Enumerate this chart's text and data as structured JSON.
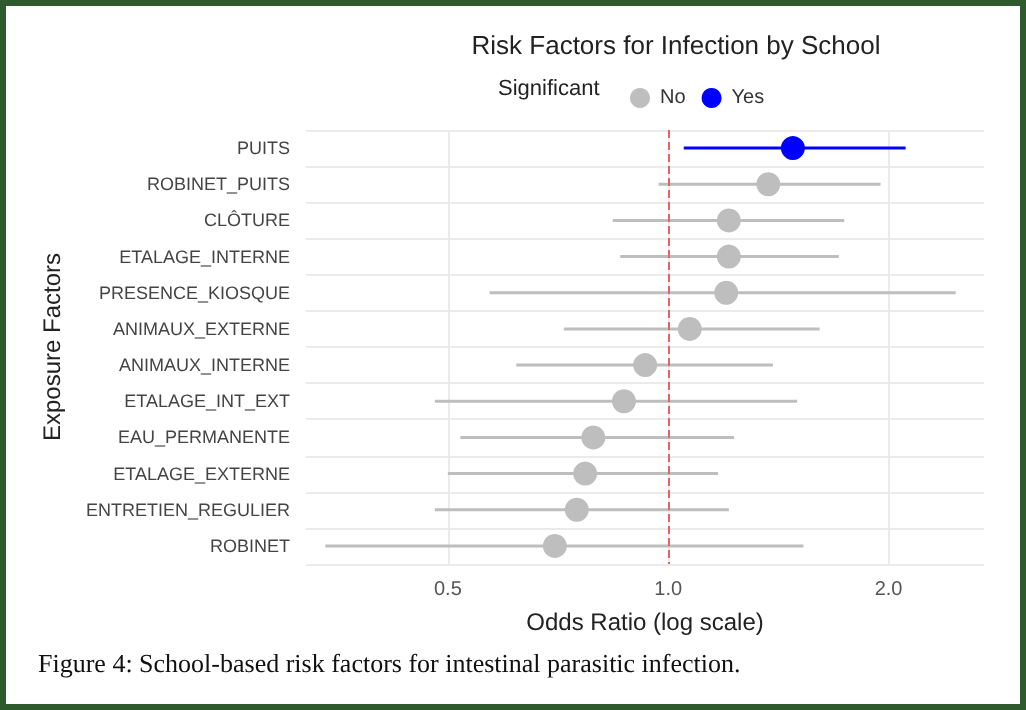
{
  "chart_data": {
    "type": "scatter",
    "title": "Risk Factors for Infection by School",
    "xlabel": "Odds Ratio (log scale)",
    "ylabel": "Exposure Factors",
    "legend_title": "Significant",
    "legend": "top",
    "annotations": [
      "Figure 4: School-based risk factors for intestinal parasitic infection."
    ],
    "orientation": "horizontal",
    "log": "x",
    "grid": true,
    "marker": "circle",
    "categories": [
      "PUITS",
      "ROBINET_PUITS",
      "CLÔTURE",
      "ETALAGE_INTERNE",
      "PRESENCE_KIOSQUE",
      "ANIMAUX_EXTERNE",
      "ANIMAUX_INTERNE",
      "ETALAGE_INT_EXT",
      "EAU_PERMANENTE",
      "ETALAGE_EXTERNE",
      "ENTRETIEN_REGULIER",
      "ROBINET"
    ],
    "xlim": [
      0.32,
      2.7
    ],
    "xticks": [
      0.5,
      {
        "value": 1,
        "label": "1.0"
      },
      {
        "value": 2,
        "label": "2.0"
      }
    ],
    "ref_lines": [
      {
        "axis": "x",
        "value": 1,
        "color": "#e06666",
        "line_style": "dashed"
      }
    ],
    "series": [
      {
        "name": "No",
        "color": "#bebebe",
        "values": [
          null,
          1.37,
          1.21,
          1.21,
          1.2,
          1.07,
          0.93,
          0.87,
          0.79,
          0.77,
          0.75,
          0.7
        ],
        "errors": [
          null,
          [
            0.97,
            1.95
          ],
          [
            0.84,
            1.74
          ],
          [
            0.86,
            1.71
          ],
          [
            0.57,
            2.47
          ],
          [
            0.72,
            1.61
          ],
          [
            0.62,
            1.39
          ],
          [
            0.48,
            1.5
          ],
          [
            0.52,
            1.23
          ],
          [
            0.5,
            1.17
          ],
          [
            0.48,
            1.21
          ],
          [
            0.34,
            1.53
          ]
        ]
      },
      {
        "name": "Yes",
        "color": "#0000ff",
        "values": [
          1.48,
          null,
          null,
          null,
          null,
          null,
          null,
          null,
          null,
          null,
          null,
          null
        ],
        "errors": [
          [
            1.05,
            2.11
          ],
          null,
          null,
          null,
          null,
          null,
          null,
          null,
          null,
          null,
          null,
          null
        ]
      }
    ]
  }
}
